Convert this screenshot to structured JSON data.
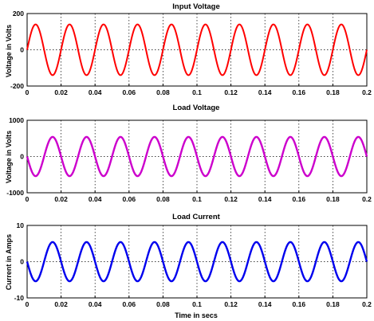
{
  "chart_data": [
    {
      "type": "line",
      "title": "Input Voltage",
      "xlabel": "",
      "ylabel": "Voltage in Volts",
      "xlim": [
        0,
        0.2
      ],
      "ylim": [
        -200,
        200
      ],
      "xticks": [
        "0",
        "0.02",
        "0.04",
        "0.06",
        "0.08",
        "0.1",
        "0.12",
        "0.14",
        "0.16",
        "0.18",
        "0.2"
      ],
      "yticks": [
        "-200",
        "0",
        "200"
      ],
      "grid": true,
      "color": "#ff0000",
      "series": [
        {
          "amplitude": 140,
          "frequency_hz": 50,
          "phase_deg": 0
        }
      ]
    },
    {
      "type": "line",
      "title": "Load Voltage",
      "xlabel": "",
      "ylabel": "Voltage in Volts",
      "xlim": [
        0,
        0.2
      ],
      "ylim": [
        -1000,
        1000
      ],
      "xticks": [
        "0",
        "0.02",
        "0.04",
        "0.06",
        "0.08",
        "0.1",
        "0.12",
        "0.14",
        "0.16",
        "0.18",
        "0.2"
      ],
      "yticks": [
        "-1000",
        "0",
        "1000"
      ],
      "grid": true,
      "color": "#cc00cc",
      "series": [
        {
          "amplitude": 540,
          "frequency_hz": 50,
          "phase_deg": 180
        }
      ]
    },
    {
      "type": "line",
      "title": "Load Current",
      "xlabel": "Time in secs",
      "ylabel": "Current in Amps",
      "xlim": [
        0,
        0.2
      ],
      "ylim": [
        -10,
        10
      ],
      "xticks": [
        "0",
        "0.02",
        "0.04",
        "0.06",
        "0.08",
        "0.1",
        "0.12",
        "0.14",
        "0.16",
        "0.18",
        "0.2"
      ],
      "yticks": [
        "-10",
        "0",
        "10"
      ],
      "grid": true,
      "color": "#0000ee",
      "series": [
        {
          "amplitude": 5.4,
          "frequency_hz": 50,
          "phase_deg": 180
        }
      ]
    }
  ]
}
